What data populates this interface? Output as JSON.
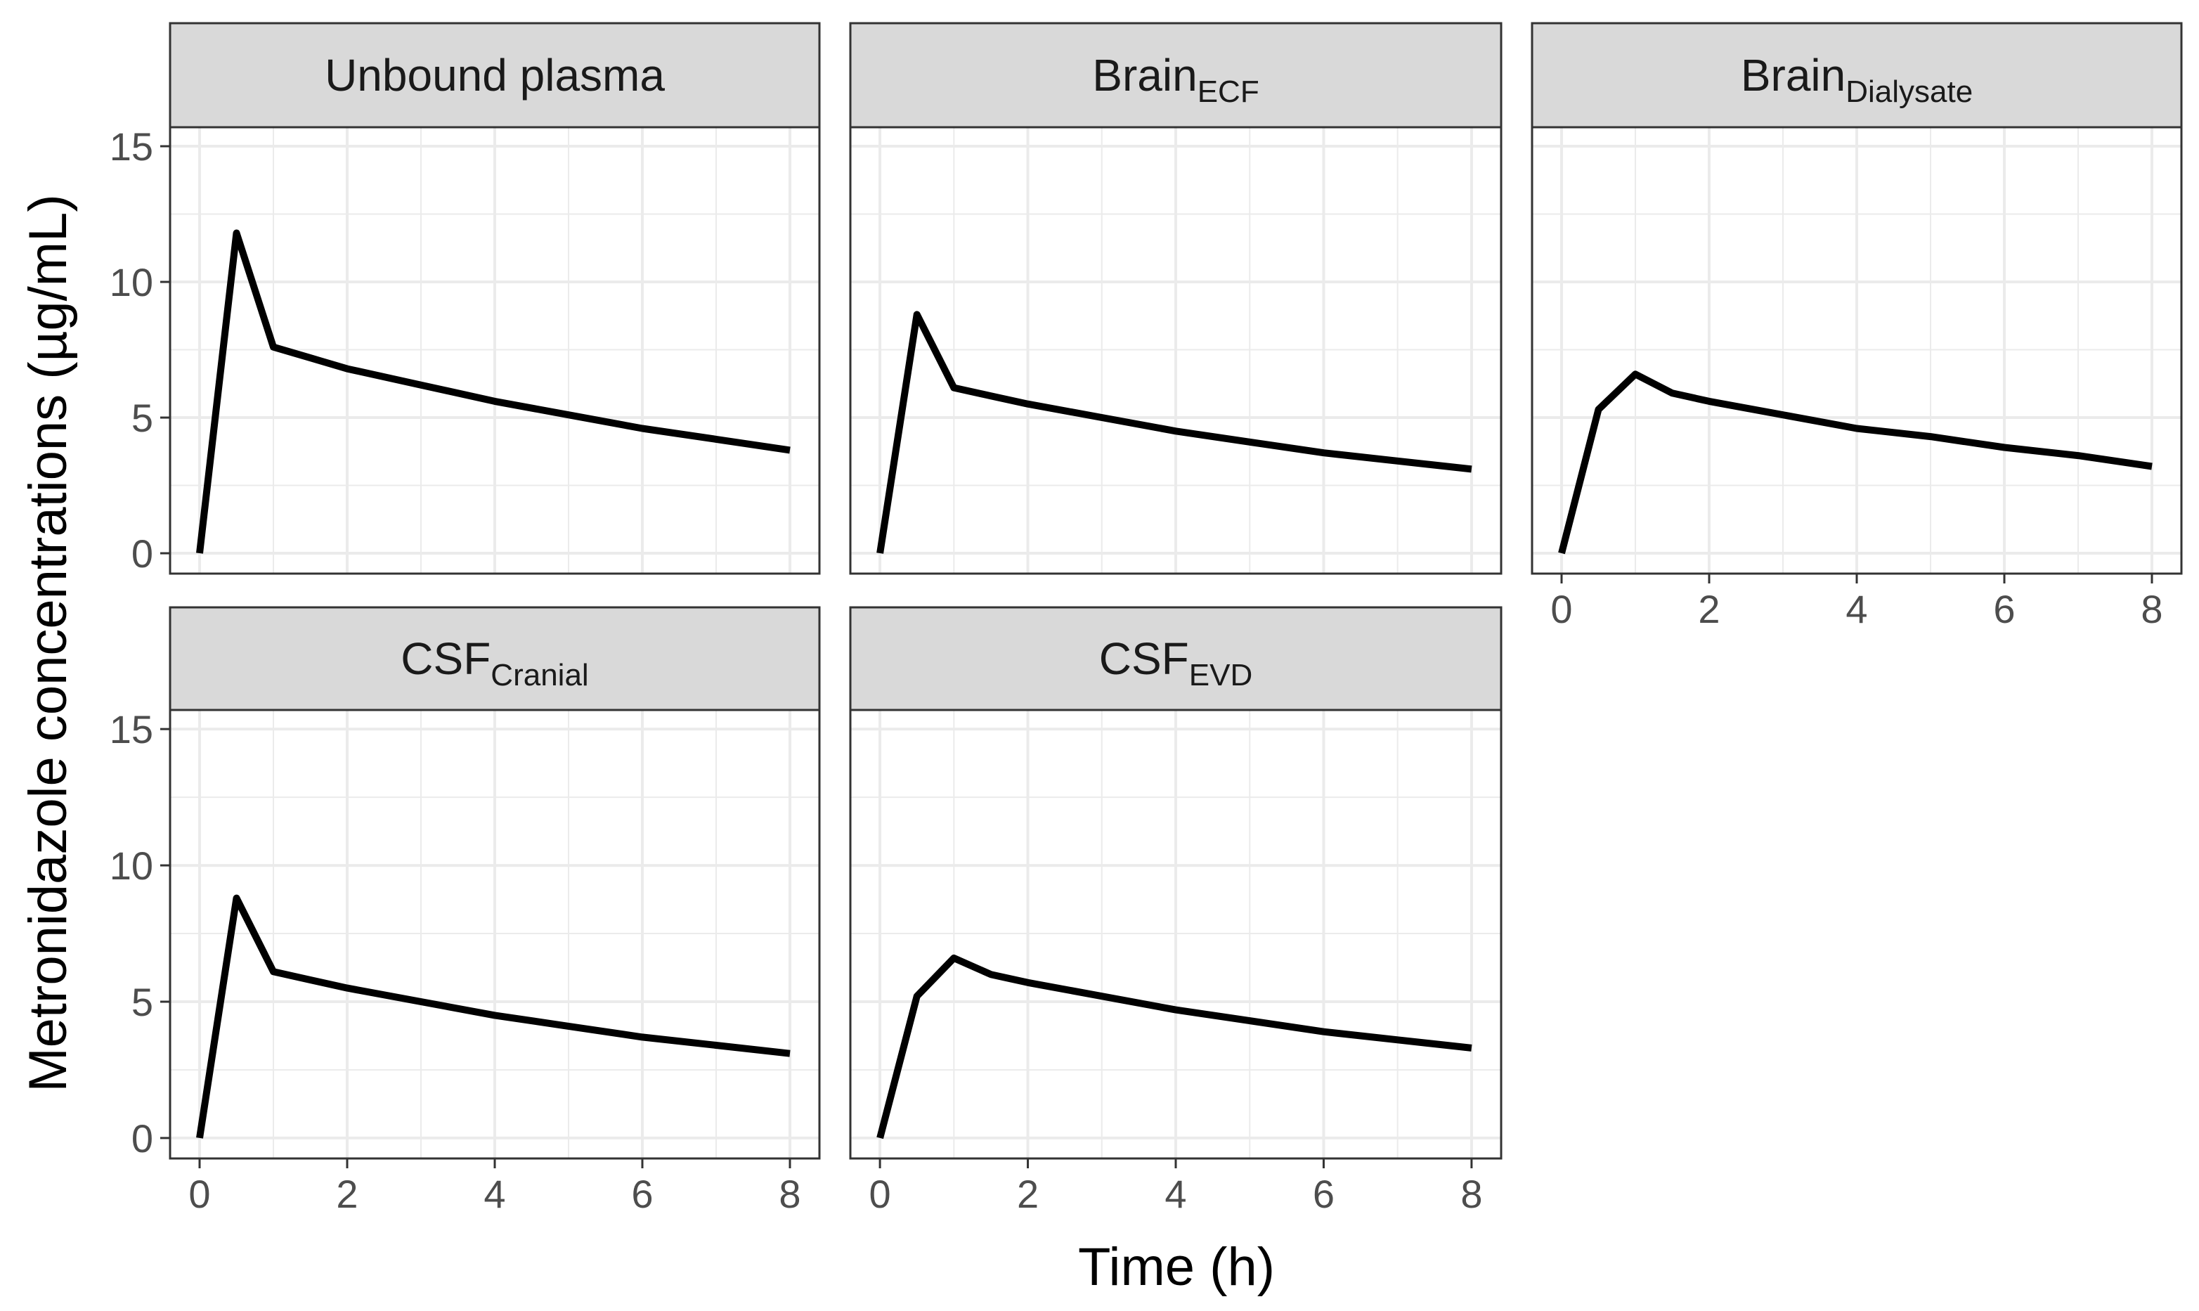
{
  "chart_data": {
    "type": "line",
    "layout": "facet_wrap 3 columns, 2 rows, shared axes",
    "xlabel": "Time (h)",
    "ylabel": "Metronidazole concentrations (µg/mL)",
    "xlim": [
      -0.4,
      8.4
    ],
    "ylim": [
      -0.75,
      15.7
    ],
    "x_ticks": [
      0,
      2,
      4,
      6,
      8
    ],
    "x_tick_labels": [
      "0",
      "2",
      "4",
      "6",
      "8"
    ],
    "y_ticks": [
      0,
      5,
      10,
      15
    ],
    "y_tick_labels": [
      "0",
      "5",
      "10",
      "15"
    ],
    "x_minor_ticks": [
      1,
      3,
      5,
      7
    ],
    "y_minor_ticks": [
      2.5,
      7.5,
      12.5
    ],
    "grid": true,
    "line_color": "#000000",
    "strip_fill": "#d9d9d9",
    "panel_border": "#333333",
    "grid_color": "#ebebeb",
    "panels": [
      {
        "title_main": "Unbound plasma",
        "title_sub": "",
        "x": [
          0,
          0.5,
          1,
          1.5,
          2,
          3,
          4,
          5,
          6,
          7,
          8
        ],
        "y": [
          0,
          11.8,
          7.6,
          7.2,
          6.8,
          6.2,
          5.6,
          5.1,
          4.6,
          4.2,
          3.8
        ]
      },
      {
        "title_main": "Brain",
        "title_sub": "ECF",
        "x": [
          0,
          0.5,
          1,
          1.5,
          2,
          3,
          4,
          5,
          6,
          7,
          8
        ],
        "y": [
          0,
          8.8,
          6.1,
          5.8,
          5.5,
          5.0,
          4.5,
          4.1,
          3.7,
          3.4,
          3.1
        ]
      },
      {
        "title_main": "Brain",
        "title_sub": "Dialysate",
        "x": [
          0,
          0.5,
          1,
          1.5,
          2,
          3,
          4,
          5,
          6,
          7,
          8
        ],
        "y": [
          0,
          5.3,
          6.6,
          5.9,
          5.6,
          5.1,
          4.6,
          4.3,
          3.9,
          3.6,
          3.2
        ]
      },
      {
        "title_main": "CSF",
        "title_sub": "Cranial",
        "x": [
          0,
          0.5,
          1,
          1.5,
          2,
          3,
          4,
          5,
          6,
          7,
          8
        ],
        "y": [
          0,
          8.8,
          6.1,
          5.8,
          5.5,
          5.0,
          4.5,
          4.1,
          3.7,
          3.4,
          3.1
        ]
      },
      {
        "title_main": "CSF",
        "title_sub": "EVD",
        "x": [
          0,
          0.5,
          1,
          1.5,
          2,
          3,
          4,
          5,
          6,
          7,
          8
        ],
        "y": [
          0,
          5.2,
          6.6,
          6.0,
          5.7,
          5.2,
          4.7,
          4.3,
          3.9,
          3.6,
          3.3
        ]
      }
    ]
  }
}
